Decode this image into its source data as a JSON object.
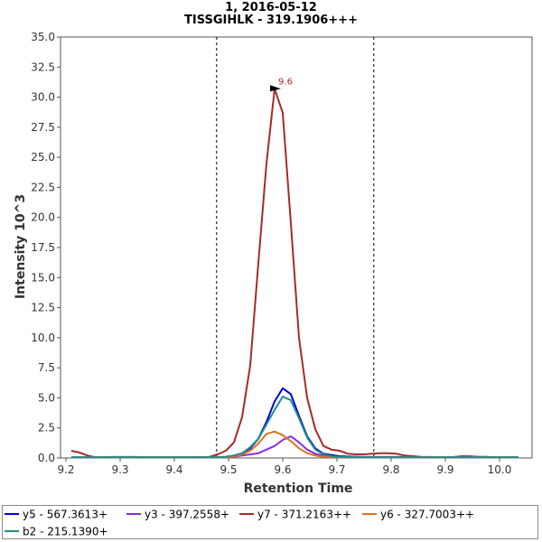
{
  "chart_data": {
    "type": "line",
    "title": "1, 2016-05-12",
    "subtitle": "TISSGIHLK - 319.1906+++",
    "xlabel": "Retention Time",
    "ylabel": "Intensity 10^3",
    "xlim": [
      9.19,
      10.06
    ],
    "ylim": [
      0,
      35.0
    ],
    "x_ticks": [
      "9.2",
      "9.3",
      "9.4",
      "9.5",
      "9.6",
      "9.7",
      "9.8",
      "9.9",
      "10.0"
    ],
    "y_ticks": [
      "0.0",
      "2.5",
      "5.0",
      "7.5",
      "10.0",
      "12.5",
      "15.0",
      "17.5",
      "20.0",
      "22.5",
      "25.0",
      "27.5",
      "30.0",
      "32.5",
      "35.0"
    ],
    "boundaries": [
      9.478,
      9.768
    ],
    "peak_annotation": {
      "label": "9.6",
      "x": 9.6,
      "y": 30.7
    },
    "legend_position": "bottom",
    "x": [
      9.21,
      9.225,
      9.24,
      9.255,
      9.27,
      9.285,
      9.3,
      9.315,
      9.33,
      9.345,
      9.36,
      9.375,
      9.39,
      9.405,
      9.42,
      9.435,
      9.45,
      9.465,
      9.48,
      9.495,
      9.51,
      9.525,
      9.54,
      9.555,
      9.57,
      9.585,
      9.6,
      9.615,
      9.63,
      9.645,
      9.66,
      9.675,
      9.69,
      9.705,
      9.72,
      9.735,
      9.75,
      9.765,
      9.78,
      9.795,
      9.81,
      9.825,
      9.84,
      9.855,
      9.87,
      9.885,
      9.9,
      9.915,
      9.93,
      9.945,
      9.96,
      9.975,
      9.99,
      10.005,
      10.02,
      10.035
    ],
    "series": [
      {
        "name": "y5 - 567.3613+",
        "color": "#0000dd",
        "values": [
          0.05,
          0.05,
          0.05,
          0.05,
          0.05,
          0.08,
          0.08,
          0.08,
          0.08,
          0.05,
          0.05,
          0.05,
          0.05,
          0.05,
          0.05,
          0.05,
          0.05,
          0.05,
          0.05,
          0.1,
          0.2,
          0.4,
          0.8,
          1.6,
          3.0,
          4.7,
          5.8,
          5.3,
          3.5,
          1.8,
          0.8,
          0.35,
          0.25,
          0.15,
          0.12,
          0.1,
          0.08,
          0.08,
          0.08,
          0.08,
          0.08,
          0.08,
          0.08,
          0.05,
          0.05,
          0.05,
          0.05,
          0.05,
          0.05,
          0.08,
          0.08,
          0.08,
          0.05,
          0.05,
          0.05,
          0.05
        ]
      },
      {
        "name": "y3 - 397.2558+",
        "color": "#8a2be2",
        "values": [
          0.05,
          0.05,
          0.05,
          0.05,
          0.05,
          0.05,
          0.05,
          0.05,
          0.05,
          0.05,
          0.05,
          0.05,
          0.05,
          0.05,
          0.05,
          0.05,
          0.05,
          0.05,
          0.05,
          0.05,
          0.1,
          0.2,
          0.3,
          0.4,
          0.7,
          1.0,
          1.5,
          1.8,
          1.3,
          0.7,
          0.35,
          0.2,
          0.1,
          0.08,
          0.05,
          0.05,
          0.05,
          0.05,
          0.05,
          0.05,
          0.05,
          0.05,
          0.05,
          0.05,
          0.05,
          0.05,
          0.05,
          0.08,
          0.15,
          0.15,
          0.1,
          0.08,
          0.05,
          0.05,
          0.05,
          0.05
        ]
      },
      {
        "name": "y7 - 371.2163++",
        "color": "#a52a2a",
        "values": [
          0.6,
          0.45,
          0.2,
          0.05,
          0.05,
          0.05,
          0.05,
          0.05,
          0.05,
          0.05,
          0.05,
          0.05,
          0.05,
          0.05,
          0.05,
          0.05,
          0.05,
          0.1,
          0.3,
          0.6,
          1.3,
          3.4,
          7.7,
          16.2,
          24.5,
          30.7,
          28.7,
          19.5,
          10.0,
          5.0,
          2.4,
          1.0,
          0.7,
          0.6,
          0.35,
          0.3,
          0.3,
          0.35,
          0.4,
          0.4,
          0.35,
          0.2,
          0.15,
          0.1,
          0.08,
          0.05,
          0.05,
          0.05,
          0.05,
          0.05,
          0.08,
          0.08,
          0.05,
          0.05,
          0.05,
          0.05
        ]
      },
      {
        "name": "y6 - 327.7003++",
        "color": "#e07020",
        "values": [
          0.05,
          0.05,
          0.05,
          0.05,
          0.05,
          0.05,
          0.05,
          0.05,
          0.05,
          0.05,
          0.05,
          0.05,
          0.05,
          0.05,
          0.05,
          0.05,
          0.05,
          0.05,
          0.05,
          0.05,
          0.1,
          0.3,
          0.6,
          1.2,
          2.0,
          2.2,
          1.9,
          1.4,
          0.8,
          0.4,
          0.2,
          0.1,
          0.08,
          0.05,
          0.05,
          0.05,
          0.05,
          0.05,
          0.05,
          0.05,
          0.05,
          0.05,
          0.05,
          0.05,
          0.05,
          0.05,
          0.05,
          0.05,
          0.05,
          0.05,
          0.05,
          0.05,
          0.05,
          0.05,
          0.05,
          0.05
        ]
      },
      {
        "name": "b2 - 215.1390+",
        "color": "#20908a",
        "values": [
          0.05,
          0.05,
          0.05,
          0.05,
          0.05,
          0.05,
          0.05,
          0.05,
          0.05,
          0.05,
          0.05,
          0.05,
          0.05,
          0.05,
          0.05,
          0.05,
          0.05,
          0.05,
          0.05,
          0.1,
          0.2,
          0.4,
          0.9,
          1.6,
          2.8,
          4.0,
          5.1,
          4.8,
          3.3,
          1.7,
          0.7,
          0.3,
          0.15,
          0.1,
          0.08,
          0.05,
          0.05,
          0.05,
          0.05,
          0.05,
          0.05,
          0.05,
          0.05,
          0.05,
          0.05,
          0.05,
          0.05,
          0.05,
          0.05,
          0.05,
          0.05,
          0.05,
          0.05,
          0.05,
          0.05,
          0.05
        ]
      }
    ]
  }
}
